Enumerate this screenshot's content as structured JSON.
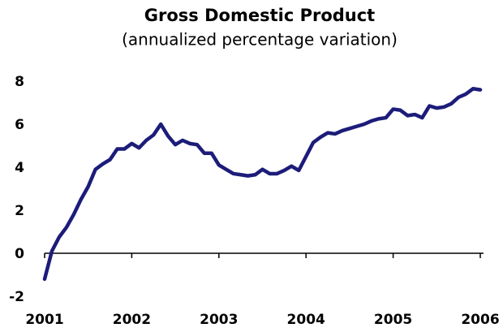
{
  "chart_data": {
    "type": "line",
    "title": "Gross Domestic Product",
    "subtitle": "(annualized percentage variation)",
    "categories": [
      "2001",
      null,
      null,
      null,
      null,
      null,
      null,
      null,
      null,
      null,
      null,
      null,
      "2002",
      null,
      null,
      null,
      null,
      null,
      null,
      null,
      null,
      null,
      null,
      null,
      "2003",
      null,
      null,
      null,
      null,
      null,
      null,
      null,
      null,
      null,
      null,
      null,
      "2004",
      null,
      null,
      null,
      null,
      null,
      null,
      null,
      null,
      null,
      null,
      null,
      "2005",
      null,
      null,
      null,
      null,
      null,
      null,
      null,
      null,
      null,
      null,
      null,
      "2006"
    ],
    "values": [
      -1.2,
      0.1,
      0.75,
      1.2,
      1.8,
      2.5,
      3.1,
      3.9,
      4.15,
      4.35,
      4.85,
      4.85,
      5.1,
      4.9,
      5.25,
      5.5,
      6.0,
      5.45,
      5.05,
      5.25,
      5.1,
      5.05,
      4.65,
      4.65,
      4.1,
      3.9,
      3.7,
      3.65,
      3.6,
      3.65,
      3.9,
      3.7,
      3.7,
      3.85,
      4.05,
      3.85,
      4.5,
      5.15,
      5.4,
      5.6,
      5.55,
      5.7,
      5.8,
      5.9,
      6.0,
      6.15,
      6.25,
      6.3,
      6.7,
      6.65,
      6.4,
      6.45,
      6.3,
      6.85,
      6.75,
      6.8,
      6.95,
      7.25,
      7.4,
      7.65,
      7.6
    ],
    "color": "#1c1c7a",
    "ylim": [
      -2,
      8
    ],
    "yticks": [
      -2,
      0,
      2,
      4,
      6,
      8
    ]
  }
}
